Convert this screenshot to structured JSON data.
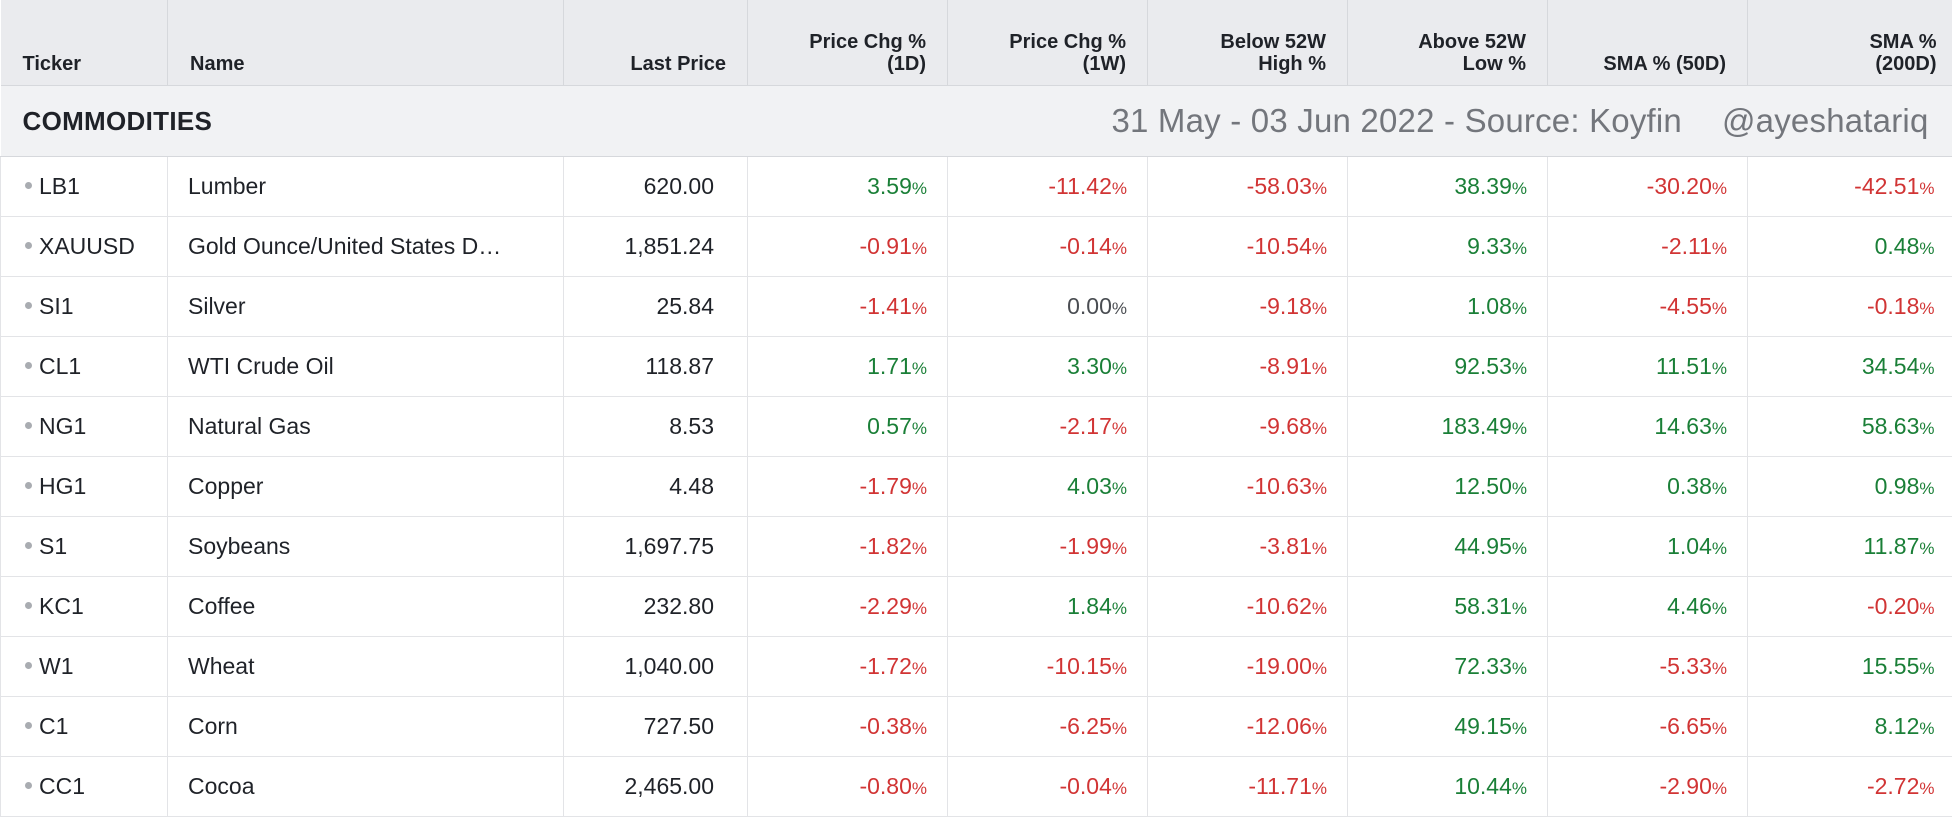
{
  "header": {
    "columns": [
      {
        "key": "ticker",
        "lines": [
          "Ticker"
        ]
      },
      {
        "key": "name",
        "lines": [
          "Name"
        ]
      },
      {
        "key": "last",
        "lines": [
          "Last Price"
        ]
      },
      {
        "key": "chg1d",
        "lines": [
          "Price Chg %",
          "(1D)"
        ]
      },
      {
        "key": "chg1w",
        "lines": [
          "Price Chg %",
          "(1W)"
        ]
      },
      {
        "key": "below52",
        "lines": [
          "Below 52W",
          "High %"
        ]
      },
      {
        "key": "above52",
        "lines": [
          "Above 52W",
          "Low %"
        ]
      },
      {
        "key": "sma50",
        "lines": [
          "SMA % (50D)"
        ]
      },
      {
        "key": "sma200",
        "lines": [
          "SMA %",
          "(200D)"
        ]
      }
    ]
  },
  "group": {
    "title": "COMMODITIES",
    "note": "31 May - 03 Jun 2022 - Source: Koyfin",
    "handle": "@ayeshatariq"
  },
  "colors": {
    "positive": "#1a7f37",
    "negative": "#d13434",
    "neutral": "#4a4d52"
  },
  "rows": [
    {
      "ticker": "LB1",
      "name": "Lumber",
      "last": "620.00",
      "chg1d": "3.59",
      "chg1w": "-11.42",
      "below52": "-58.03",
      "above52": "38.39",
      "sma50": "-30.20",
      "sma200": "-42.51"
    },
    {
      "ticker": "XAUUSD",
      "name": "Gold Ounce/United States D…",
      "last": "1,851.24",
      "chg1d": "-0.91",
      "chg1w": "-0.14",
      "below52": "-10.54",
      "above52": "9.33",
      "sma50": "-2.11",
      "sma200": "0.48"
    },
    {
      "ticker": "SI1",
      "name": "Silver",
      "last": "25.84",
      "chg1d": "-1.41",
      "chg1w": "0.00",
      "below52": "-9.18",
      "above52": "1.08",
      "sma50": "-4.55",
      "sma200": "-0.18"
    },
    {
      "ticker": "CL1",
      "name": "WTI Crude Oil",
      "last": "118.87",
      "chg1d": "1.71",
      "chg1w": "3.30",
      "below52": "-8.91",
      "above52": "92.53",
      "sma50": "11.51",
      "sma200": "34.54"
    },
    {
      "ticker": "NG1",
      "name": "Natural Gas",
      "last": "8.53",
      "chg1d": "0.57",
      "chg1w": "-2.17",
      "below52": "-9.68",
      "above52": "183.49",
      "sma50": "14.63",
      "sma200": "58.63"
    },
    {
      "ticker": "HG1",
      "name": "Copper",
      "last": "4.48",
      "chg1d": "-1.79",
      "chg1w": "4.03",
      "below52": "-10.63",
      "above52": "12.50",
      "sma50": "0.38",
      "sma200": "0.98"
    },
    {
      "ticker": "S1",
      "name": "Soybeans",
      "last": "1,697.75",
      "chg1d": "-1.82",
      "chg1w": "-1.99",
      "below52": "-3.81",
      "above52": "44.95",
      "sma50": "1.04",
      "sma200": "11.87"
    },
    {
      "ticker": "KC1",
      "name": "Coffee",
      "last": "232.80",
      "chg1d": "-2.29",
      "chg1w": "1.84",
      "below52": "-10.62",
      "above52": "58.31",
      "sma50": "4.46",
      "sma200": "-0.20"
    },
    {
      "ticker": "W1",
      "name": "Wheat",
      "last": "1,040.00",
      "chg1d": "-1.72",
      "chg1w": "-10.15",
      "below52": "-19.00",
      "above52": "72.33",
      "sma50": "-5.33",
      "sma200": "15.55"
    },
    {
      "ticker": "C1",
      "name": "Corn",
      "last": "727.50",
      "chg1d": "-0.38",
      "chg1w": "-6.25",
      "below52": "-12.06",
      "above52": "49.15",
      "sma50": "-6.65",
      "sma200": "8.12"
    },
    {
      "ticker": "CC1",
      "name": "Cocoa",
      "last": "2,465.00",
      "chg1d": "-0.80",
      "chg1w": "-0.04",
      "below52": "-11.71",
      "above52": "10.44",
      "sma50": "-2.90",
      "sma200": "-2.72"
    }
  ],
  "percent_sign": "%"
}
